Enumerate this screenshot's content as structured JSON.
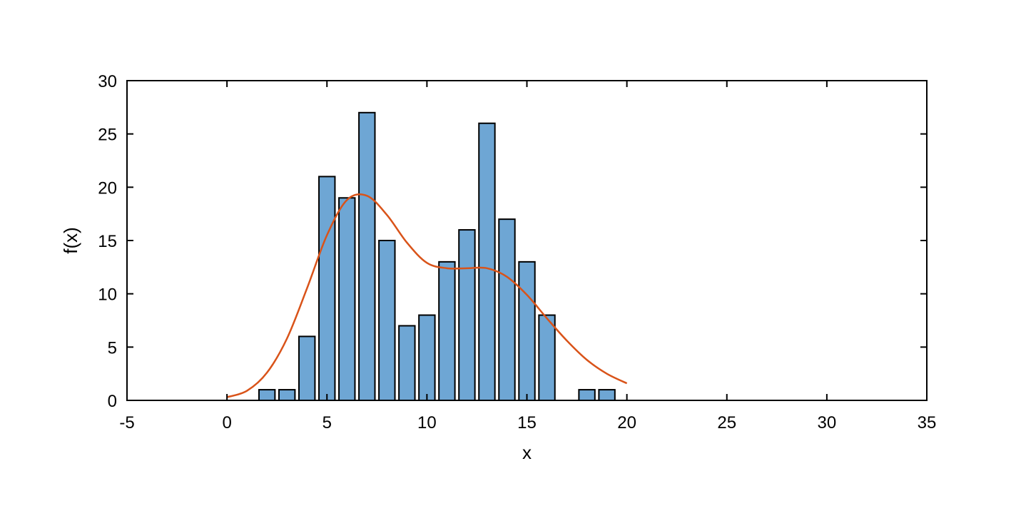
{
  "chart_data": {
    "type": "bar",
    "title": "",
    "xlabel": "x",
    "ylabel": "f(x)",
    "xlim": [
      -5,
      35
    ],
    "ylim": [
      0,
      30
    ],
    "xticks": [
      -5,
      0,
      5,
      10,
      15,
      20,
      25,
      30,
      35
    ],
    "yticks": [
      0,
      5,
      10,
      15,
      20,
      25,
      30
    ],
    "grid": false,
    "legend": "none",
    "bar_width": 0.8,
    "bars": {
      "x": [
        2,
        3,
        4,
        5,
        6,
        7,
        8,
        9,
        10,
        11,
        12,
        13,
        14,
        15,
        16,
        18,
        19
      ],
      "values": [
        1,
        1,
        6,
        21,
        19,
        27,
        15,
        7,
        8,
        13,
        16,
        26,
        17,
        13,
        8,
        1,
        1
      ]
    },
    "curve": {
      "x": [
        0,
        1,
        2,
        3,
        4,
        5,
        6,
        7,
        8,
        9,
        10,
        11,
        12,
        13,
        14,
        15,
        16,
        17,
        18,
        19,
        20
      ],
      "y": [
        0.3,
        0.9,
        2.6,
        5.8,
        10.5,
        15.5,
        18.8,
        19.2,
        17.4,
        14.8,
        12.9,
        12.4,
        12.4,
        12.4,
        11.6,
        9.9,
        7.7,
        5.6,
        3.8,
        2.5,
        1.6
      ]
    },
    "colors": {
      "bar_fill": "#6ea6d4",
      "bar_edge": "#000000",
      "curve": "#d95319"
    }
  }
}
